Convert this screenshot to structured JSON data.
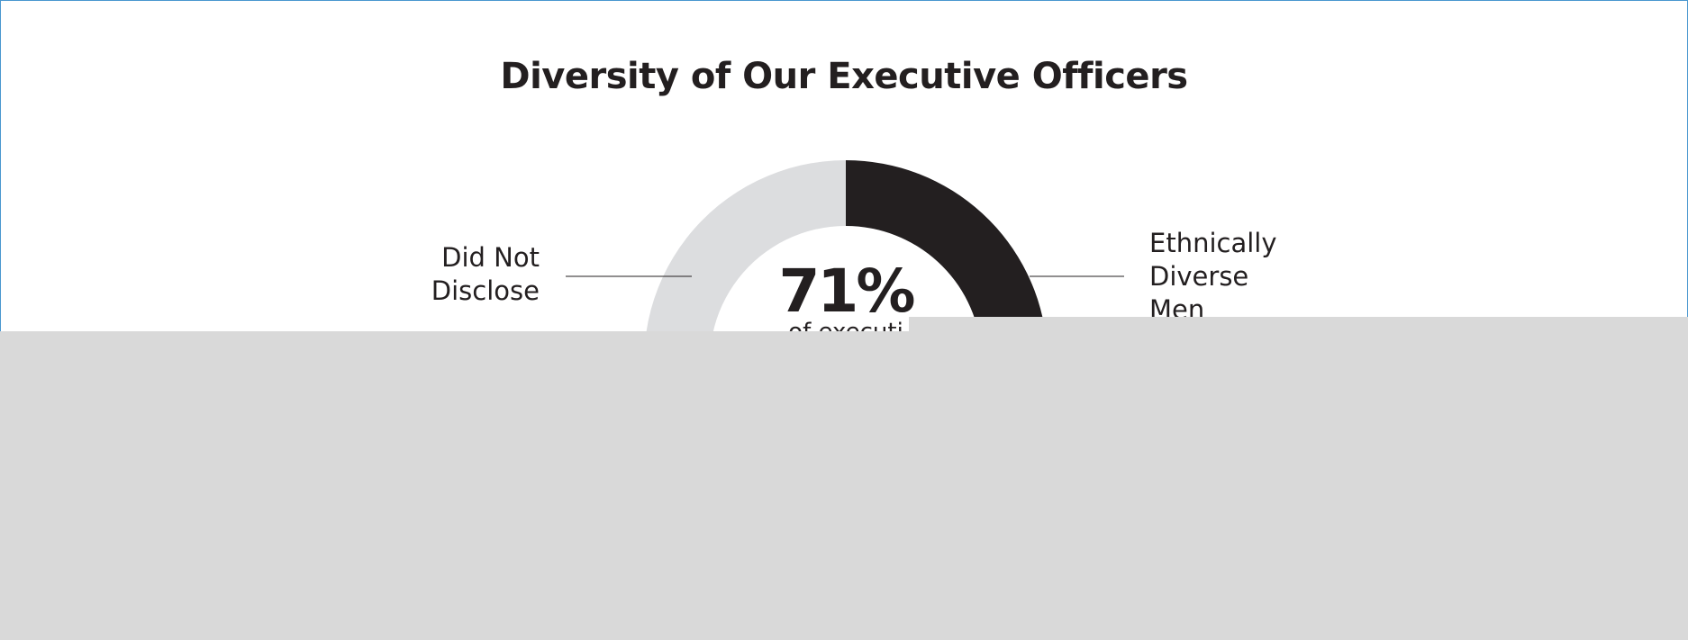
{
  "chart_data": {
    "type": "pie",
    "title": "Diversity of Our Executive Officers",
    "center_label": "71%",
    "center_sublabel": "of executi",
    "slices": [
      {
        "name": "Ethnically Diverse Men",
        "value": 71,
        "color": "#231f20"
      },
      {
        "name": "Did Not Disclose",
        "value": 29,
        "color": "#dcdddf"
      }
    ],
    "labels": {
      "left": [
        "Did Not",
        "Disclose"
      ],
      "right": [
        "Ethnically",
        "Diverse",
        "Men"
      ]
    }
  },
  "colors": {
    "overlay": "#d9d9d9",
    "frame": "#4a97cf"
  }
}
